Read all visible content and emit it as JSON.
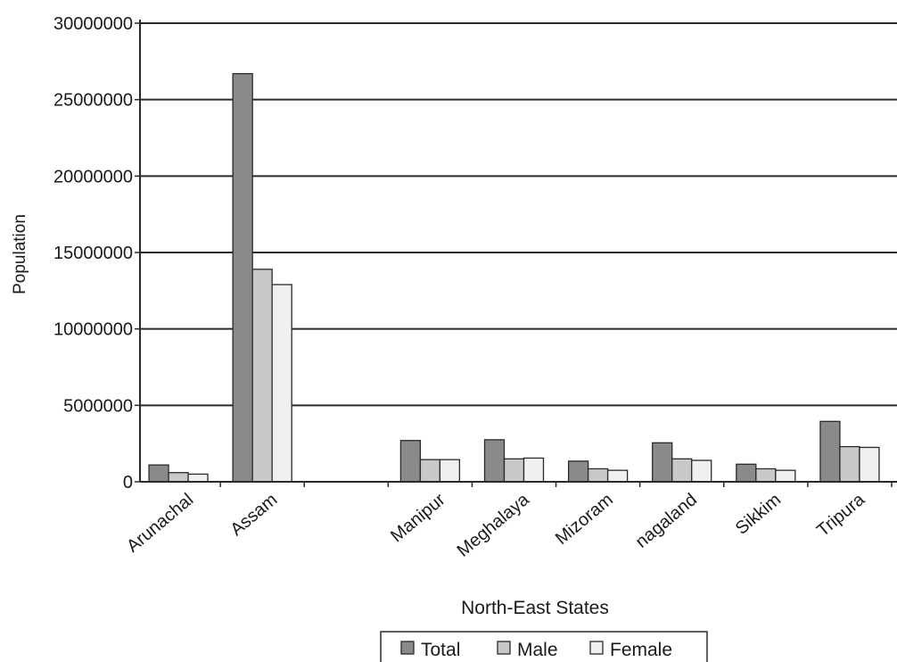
{
  "chart_data": {
    "type": "bar",
    "title": "",
    "xlabel": "North-East States",
    "ylabel": "Population",
    "ylim": [
      0,
      30000000
    ],
    "yticks": [
      0,
      5000000,
      10000000,
      15000000,
      20000000,
      25000000,
      30000000
    ],
    "ytick_labels": [
      "0",
      "5000000",
      "10000000",
      "15000000",
      "20000000",
      "25000000",
      "30000000"
    ],
    "grid": true,
    "legend_position": "bottom",
    "categories": [
      "Arunachal",
      "Assam",
      "",
      "Manipur",
      "Meghalaya",
      "Mizoram",
      "nagaland",
      "Sikkim",
      "Tripura"
    ],
    "series": [
      {
        "name": "Total",
        "color": "#8a8a8a",
        "values": [
          1100000,
          26700000,
          0,
          2700000,
          2750000,
          1350000,
          2550000,
          1150000,
          3950000
        ]
      },
      {
        "name": "Male",
        "color": "#c8c8c8",
        "values": [
          600000,
          13900000,
          0,
          1450000,
          1500000,
          850000,
          1500000,
          850000,
          2300000
        ]
      },
      {
        "name": "Female",
        "color": "#f0f0f0",
        "values": [
          500000,
          12900000,
          0,
          1450000,
          1550000,
          750000,
          1400000,
          750000,
          2250000
        ]
      }
    ]
  }
}
